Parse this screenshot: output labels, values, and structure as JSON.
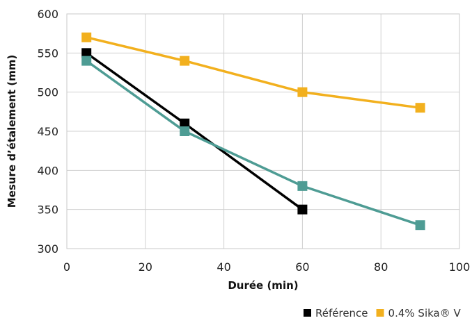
{
  "chart_data": {
    "type": "line",
    "title": "",
    "xlabel": "Durée (min)",
    "ylabel": "Mesure d’étalement (mm)",
    "xlim": [
      0,
      100
    ],
    "ylim": [
      300,
      600
    ],
    "xticks": [
      "0",
      "20",
      "40",
      "60",
      "80",
      "100"
    ],
    "yticks": [
      "300",
      "350",
      "400",
      "450",
      "500",
      "550",
      "600"
    ],
    "grid": true,
    "legend_position": "bottom-right",
    "series": [
      {
        "name": "Référence",
        "color": "#000000",
        "marker": "square",
        "x": [
          5,
          30,
          60
        ],
        "y": [
          550,
          460,
          350
        ]
      },
      {
        "name": "0.4% Sika® V",
        "color": "#f2b01e",
        "marker": "square",
        "x": [
          5,
          30,
          60,
          90
        ],
        "y": [
          570,
          540,
          500,
          480
        ]
      },
      {
        "name": "",
        "color": "#4e9c94",
        "marker": "square",
        "x": [
          5,
          30,
          60,
          90
        ],
        "y": [
          540,
          450,
          380,
          330
        ]
      }
    ]
  }
}
